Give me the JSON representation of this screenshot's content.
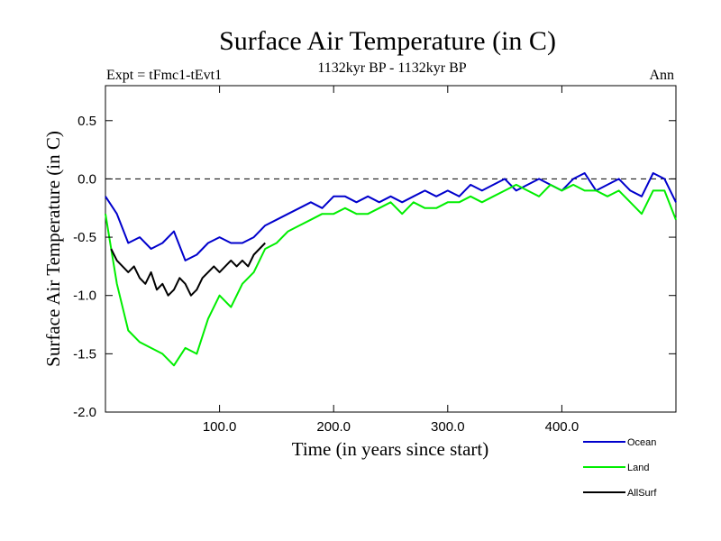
{
  "chart_data": {
    "type": "line",
    "title": "Surface Air Temperature (in C)",
    "subtitle": "1132kyr BP - 1132kyr BP",
    "experiment": "Expt = tFmc1-tEvt1",
    "season": "Ann",
    "xlabel": "Time (in years since start)",
    "ylabel": "Surface Air Temperature (in C)",
    "xlim": [
      0,
      500
    ],
    "ylim": [
      -2.0,
      0.8
    ],
    "xticks": [
      100,
      200,
      300,
      400
    ],
    "xtick_labels": [
      "100.0",
      "200.0",
      "300.0",
      "400.0"
    ],
    "yticks": [
      0.5,
      0.0,
      -0.5,
      -1.0,
      -1.5,
      -2.0
    ],
    "ytick_labels": [
      "0.5",
      "0.0",
      "-0.5",
      "-1.0",
      "-1.5",
      "-2.0"
    ],
    "reference_line": 0.0,
    "series": [
      {
        "name": "Ocean",
        "color": "#0000cc",
        "x": [
          0,
          10,
          20,
          30,
          40,
          50,
          60,
          70,
          80,
          90,
          100,
          110,
          120,
          130,
          140,
          150,
          160,
          170,
          180,
          190,
          200,
          210,
          220,
          230,
          240,
          250,
          260,
          270,
          280,
          290,
          300,
          310,
          320,
          330,
          340,
          350,
          360,
          370,
          380,
          390,
          400,
          410,
          420,
          430,
          440,
          450,
          460,
          470,
          480,
          490,
          500
        ],
        "values": [
          -0.15,
          -0.3,
          -0.55,
          -0.5,
          -0.6,
          -0.55,
          -0.45,
          -0.7,
          -0.65,
          -0.55,
          -0.5,
          -0.55,
          -0.55,
          -0.5,
          -0.4,
          -0.35,
          -0.3,
          -0.25,
          -0.2,
          -0.25,
          -0.15,
          -0.15,
          -0.2,
          -0.15,
          -0.2,
          -0.15,
          -0.2,
          -0.15,
          -0.1,
          -0.15,
          -0.1,
          -0.15,
          -0.05,
          -0.1,
          -0.05,
          0.0,
          -0.1,
          -0.05,
          0.0,
          -0.05,
          -0.1,
          0.0,
          0.05,
          -0.1,
          -0.05,
          0.0,
          -0.1,
          -0.15,
          0.05,
          0.0,
          -0.2
        ]
      },
      {
        "name": "Land",
        "color": "#00ee00",
        "x": [
          0,
          10,
          20,
          30,
          40,
          50,
          60,
          70,
          80,
          90,
          100,
          110,
          120,
          130,
          140,
          150,
          160,
          170,
          180,
          190,
          200,
          210,
          220,
          230,
          240,
          250,
          260,
          270,
          280,
          290,
          300,
          310,
          320,
          330,
          340,
          350,
          360,
          370,
          380,
          390,
          400,
          410,
          420,
          430,
          440,
          450,
          460,
          470,
          480,
          490,
          500
        ],
        "values": [
          -0.3,
          -0.9,
          -1.3,
          -1.4,
          -1.45,
          -1.5,
          -1.6,
          -1.45,
          -1.5,
          -1.2,
          -1.0,
          -1.1,
          -0.9,
          -0.8,
          -0.6,
          -0.55,
          -0.45,
          -0.4,
          -0.35,
          -0.3,
          -0.3,
          -0.25,
          -0.3,
          -0.3,
          -0.25,
          -0.2,
          -0.3,
          -0.2,
          -0.25,
          -0.25,
          -0.2,
          -0.2,
          -0.15,
          -0.2,
          -0.15,
          -0.1,
          -0.05,
          -0.1,
          -0.15,
          -0.05,
          -0.1,
          -0.05,
          -0.1,
          -0.1,
          -0.15,
          -0.1,
          -0.2,
          -0.3,
          -0.1,
          -0.1,
          -0.35
        ]
      },
      {
        "name": "AllSurf",
        "color": "#000000",
        "x": [
          5,
          10,
          15,
          20,
          25,
          30,
          35,
          40,
          45,
          50,
          55,
          60,
          65,
          70,
          75,
          80,
          85,
          90,
          95,
          100,
          105,
          110,
          115,
          120,
          125,
          130,
          135,
          140
        ],
        "values": [
          -0.6,
          -0.7,
          -0.75,
          -0.8,
          -0.75,
          -0.85,
          -0.9,
          -0.8,
          -0.95,
          -0.9,
          -1.0,
          -0.95,
          -0.85,
          -0.9,
          -1.0,
          -0.95,
          -0.85,
          -0.8,
          -0.75,
          -0.8,
          -0.75,
          -0.7,
          -0.75,
          -0.7,
          -0.75,
          -0.65,
          -0.6,
          -0.55
        ]
      }
    ],
    "legend": [
      "Ocean",
      "Land",
      "AllSurf"
    ],
    "legend_placement": "bottom-right"
  }
}
